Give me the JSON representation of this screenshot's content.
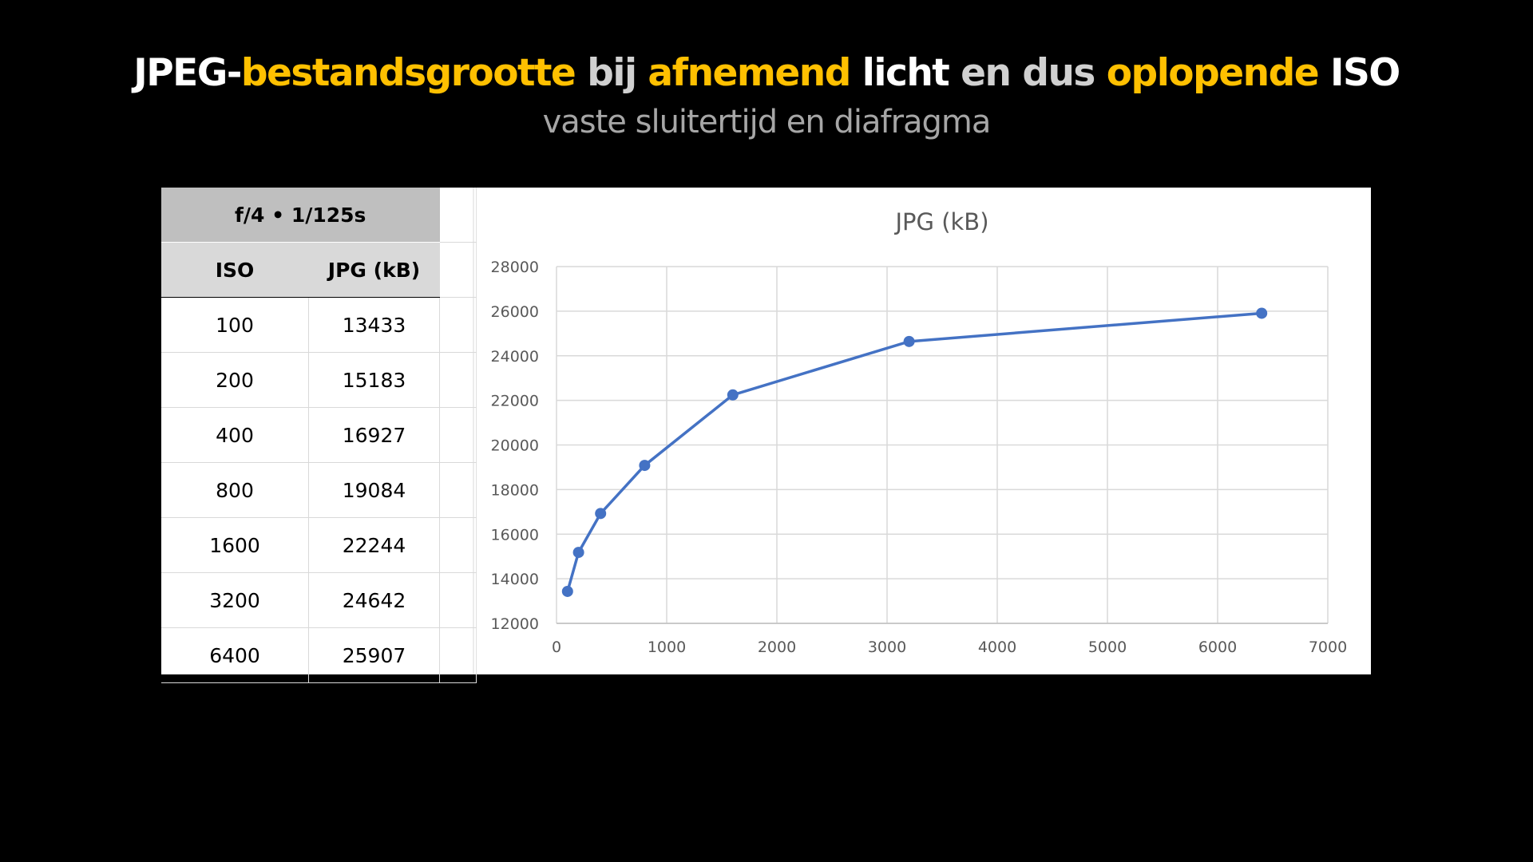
{
  "title_parts": [
    {
      "text": "JPEG-",
      "color": "#ffffff"
    },
    {
      "text": "bestandsgrootte ",
      "color": "#ffc000"
    },
    {
      "text": "bij ",
      "color": "#d0d0d0"
    },
    {
      "text": "afnemend ",
      "color": "#ffc000"
    },
    {
      "text": "licht ",
      "color": "#ffffff"
    },
    {
      "text": "en dus ",
      "color": "#d0d0d0"
    },
    {
      "text": "oplopende ",
      "color": "#ffc000"
    },
    {
      "text": "ISO",
      "color": "#ffffff"
    }
  ],
  "subtitle": "vaste sluitertijd en diafragma",
  "table": {
    "settings": "f/4  • 1/125s",
    "headers": [
      "ISO",
      "JPG (kB)"
    ],
    "rows": [
      [
        "100",
        "13433"
      ],
      [
        "200",
        "15183"
      ],
      [
        "400",
        "16927"
      ],
      [
        "800",
        "19084"
      ],
      [
        "1600",
        "22244"
      ],
      [
        "3200",
        "24642"
      ],
      [
        "6400",
        "25907"
      ]
    ]
  },
  "chart_data": {
    "type": "scatter-line",
    "title": "JPG (kB)",
    "x": [
      100,
      200,
      400,
      800,
      1600,
      3200,
      6400
    ],
    "series": [
      {
        "values": [
          13433,
          15183,
          16927,
          19084,
          22244,
          24642,
          25907
        ],
        "color": "#4472c4"
      }
    ],
    "xlim": [
      0,
      7000
    ],
    "ylim": [
      12000,
      28000
    ],
    "xticks": [
      "0",
      "1000",
      "2000",
      "3000",
      "4000",
      "5000",
      "6000",
      "7000"
    ],
    "yticks": [
      "12000",
      "14000",
      "16000",
      "18000",
      "20000",
      "22000",
      "24000",
      "26000",
      "28000"
    ],
    "grid": true,
    "legend": "none"
  }
}
